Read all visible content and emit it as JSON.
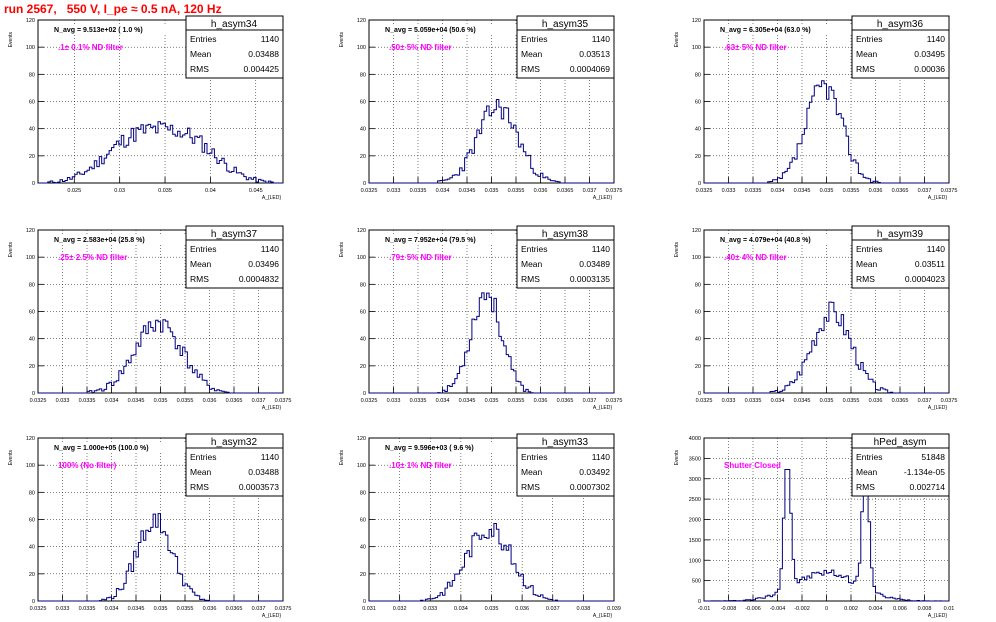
{
  "page": {
    "title": "run 2567,   550 V, I_pe ≈ 0.5 nA, 120 Hz"
  },
  "colors": {
    "title": "#ff0000",
    "histogram": "#000080",
    "annotation": "#ff00ff",
    "frame": "#000000",
    "grid": "#000000"
  },
  "chart_data": [
    {
      "type": "bar",
      "name": "h_asym34",
      "nlabel": "N_avg = 9.513e+02 ( 1.0 %)",
      "annotation": ".1± 0.1% ND filter",
      "stats": {
        "entries_label": "Entries",
        "entries": "1140",
        "mean_label": "Mean",
        "mean": "0.03488",
        "rms_label": "RMS",
        "rms": "0.004425"
      },
      "ylabel": "Events",
      "xlabel": "A_{LED}",
      "xlim": [
        0.021,
        0.048
      ],
      "ylim": [
        0,
        120
      ],
      "xticks": [
        "0.025",
        "0.03",
        "0.035",
        "0.04",
        "0.045"
      ],
      "yticks": [
        "0",
        "20",
        "40",
        "60",
        "80",
        "100",
        "120"
      ],
      "peaks": [
        [
          0.0315,
          0.0033,
          30
        ],
        [
          0.0375,
          0.0033,
          30
        ]
      ],
      "seed": 11,
      "grid": true
    },
    {
      "type": "bar",
      "name": "h_asym35",
      "nlabel": "N_avg = 5.059e+04 (50.6 %)",
      "annotation": ".50± 5% ND filter",
      "stats": {
        "entries_label": "Entries",
        "entries": "1140",
        "mean_label": "Mean",
        "mean": "0.03513",
        "rms_label": "RMS",
        "rms": "0.0004069"
      },
      "ylabel": "Events",
      "xlabel": "A_{LED}",
      "xlim": [
        0.0325,
        0.0375
      ],
      "xticks": [
        "0.0325",
        "0.033",
        "0.0335",
        "0.034",
        "0.0345",
        "0.035",
        "0.0355",
        "0.036",
        "0.0365",
        "0.037",
        "0.0375"
      ],
      "ylim": [
        0,
        120
      ],
      "yticks": [
        "0",
        "20",
        "40",
        "60",
        "80",
        "100",
        "120"
      ],
      "peaks": [
        [
          0.03513,
          0.00041,
          56
        ]
      ],
      "seed": 23,
      "grid": true
    },
    {
      "type": "bar",
      "name": "h_asym36",
      "nlabel": "N_avg = 6.305e+04 (63.0 %)",
      "annotation": ".63± 5% ND filter",
      "stats": {
        "entries_label": "Entries",
        "entries": "1140",
        "mean_label": "Mean",
        "mean": "0.03495",
        "rms_label": "RMS",
        "rms": "0.00036"
      },
      "ylabel": "Events",
      "xlabel": "A_{LED}",
      "xlim": [
        0.0325,
        0.0375
      ],
      "xticks": [
        "0.0325",
        "0.033",
        "0.0335",
        "0.034",
        "0.0345",
        "0.035",
        "0.0355",
        "0.036",
        "0.0365",
        "0.037",
        "0.0375"
      ],
      "ylim": [
        0,
        120
      ],
      "yticks": [
        "0",
        "20",
        "40",
        "60",
        "80",
        "100",
        "120"
      ],
      "peaks": [
        [
          0.03495,
          0.00036,
          72
        ]
      ],
      "seed": 37,
      "grid": true
    },
    {
      "type": "bar",
      "name": "h_asym37",
      "nlabel": "N_avg = 2.583e+04 (25.8 %)",
      "annotation": ".25± 2.5% ND filter",
      "stats": {
        "entries_label": "Entries",
        "entries": "1140",
        "mean_label": "Mean",
        "mean": "0.03496",
        "rms_label": "RMS",
        "rms": "0.0004832"
      },
      "ylabel": "Events",
      "xlabel": "A_{LED}",
      "xlim": [
        0.0325,
        0.0375
      ],
      "xticks": [
        "0.0325",
        "0.033",
        "0.0335",
        "0.034",
        "0.0345",
        "0.035",
        "0.0355",
        "0.036",
        "0.0365",
        "0.037",
        "0.0375"
      ],
      "ylim": [
        0,
        120
      ],
      "yticks": [
        "0",
        "20",
        "40",
        "60",
        "80",
        "100",
        "120"
      ],
      "peaks": [
        [
          0.03496,
          0.00048,
          52
        ]
      ],
      "seed": 41,
      "grid": true
    },
    {
      "type": "bar",
      "name": "h_asym38",
      "nlabel": "N_avg = 7.952e+04 (79.5 %)",
      "annotation": ".79± 5% ND filter",
      "stats": {
        "entries_label": "Entries",
        "entries": "1140",
        "mean_label": "Mean",
        "mean": "0.03489",
        "rms_label": "RMS",
        "rms": "0.0003135"
      },
      "ylabel": "Events",
      "xlabel": "A_{LED}",
      "xlim": [
        0.0325,
        0.0375
      ],
      "xticks": [
        "0.0325",
        "0.033",
        "0.0335",
        "0.034",
        "0.0345",
        "0.035",
        "0.0355",
        "0.036",
        "0.0365",
        "0.037",
        "0.0375"
      ],
      "ylim": [
        0,
        120
      ],
      "yticks": [
        "0",
        "20",
        "40",
        "60",
        "80",
        "100",
        "120"
      ],
      "peaks": [
        [
          0.03489,
          0.00031,
          74
        ]
      ],
      "seed": 53,
      "grid": true
    },
    {
      "type": "bar",
      "name": "h_asym39",
      "nlabel": "N_avg = 4.079e+04 (40.8 %)",
      "annotation": ".40± 4% ND filter",
      "stats": {
        "entries_label": "Entries",
        "entries": "1140",
        "mean_label": "Mean",
        "mean": "0.03511",
        "rms_label": "RMS",
        "rms": "0.0004023"
      },
      "ylabel": "Events",
      "xlabel": "A_{LED}",
      "xlim": [
        0.0325,
        0.0375
      ],
      "xticks": [
        "0.0325",
        "0.033",
        "0.0335",
        "0.034",
        "0.0345",
        "0.035",
        "0.0355",
        "0.036",
        "0.0365",
        "0.037",
        "0.0375"
      ],
      "ylim": [
        0,
        120
      ],
      "yticks": [
        "0",
        "20",
        "40",
        "60",
        "80",
        "100",
        "120"
      ],
      "peaks": [
        [
          0.03511,
          0.0004,
          60
        ]
      ],
      "seed": 67,
      "grid": true
    },
    {
      "type": "bar",
      "name": "h_asym32",
      "nlabel": "N_avg = 1.000e+05 (100.0 %)",
      "annotation": "100% (No filter)",
      "stats": {
        "entries_label": "Entries",
        "entries": "1140",
        "mean_label": "Mean",
        "mean": "0.03488",
        "rms_label": "RMS",
        "rms": "0.0003573"
      },
      "ylabel": "Events",
      "xlabel": "A_{LED}",
      "xlim": [
        0.0325,
        0.0375
      ],
      "xticks": [
        "0.0325",
        "0.033",
        "0.0335",
        "0.034",
        "0.0345",
        "0.035",
        "0.0355",
        "0.036",
        "0.0365",
        "0.037",
        "0.0375"
      ],
      "ylim": [
        0,
        120
      ],
      "yticks": [
        "0",
        "20",
        "40",
        "60",
        "80",
        "100",
        "120"
      ],
      "peaks": [
        [
          0.03488,
          0.00036,
          60
        ]
      ],
      "seed": 79,
      "grid": true
    },
    {
      "type": "bar",
      "name": "h_asym33",
      "nlabel": "N_avg = 9.596e+03 ( 9.6 %)",
      "annotation": ".10± 1% ND filter",
      "stats": {
        "entries_label": "Entries",
        "entries": "1140",
        "mean_label": "Mean",
        "mean": "0.03492",
        "rms_label": "RMS",
        "rms": "0.0007302"
      },
      "ylabel": "Events",
      "xlabel": "A_{LED}",
      "xlim": [
        0.031,
        0.039
      ],
      "xticks": [
        "0.031",
        "0.032",
        "0.033",
        "0.034",
        "0.035",
        "0.036",
        "0.037",
        "0.038",
        "0.039"
      ],
      "ylim": [
        0,
        120
      ],
      "yticks": [
        "0",
        "20",
        "40",
        "60",
        "80",
        "100",
        "120"
      ],
      "peaks": [
        [
          0.03492,
          0.00073,
          54
        ]
      ],
      "seed": 83,
      "grid": true
    },
    {
      "type": "bar",
      "name": "hPed_asym",
      "nlabel": "",
      "annotation": "Shutter Closed",
      "stats": {
        "entries_label": "Entries",
        "entries": "51848",
        "mean_label": "Mean",
        "mean": "-1.134e-05",
        "rms_label": "RMS",
        "rms": "0.002714"
      },
      "ylabel": "Events",
      "xlabel": "A_{LED}",
      "xlim": [
        -0.01,
        0.01
      ],
      "xticks": [
        "-0.01",
        "-0.008",
        "-0.006",
        "-0.004",
        "-0.002",
        "0",
        "0.002",
        "0.004",
        "0.006",
        "0.008",
        "0.01"
      ],
      "ylim": [
        0,
        4000
      ],
      "yticks": [
        "0",
        "500",
        "1000",
        "1500",
        "2000",
        "2500",
        "3000",
        "3500",
        "4000"
      ],
      "peaks": [
        [
          -0.0032,
          0.00028,
          3200
        ],
        [
          0.0032,
          0.00028,
          3000
        ],
        [
          0.0,
          0.0025,
          700
        ]
      ],
      "seed": 97,
      "grid": true
    }
  ]
}
